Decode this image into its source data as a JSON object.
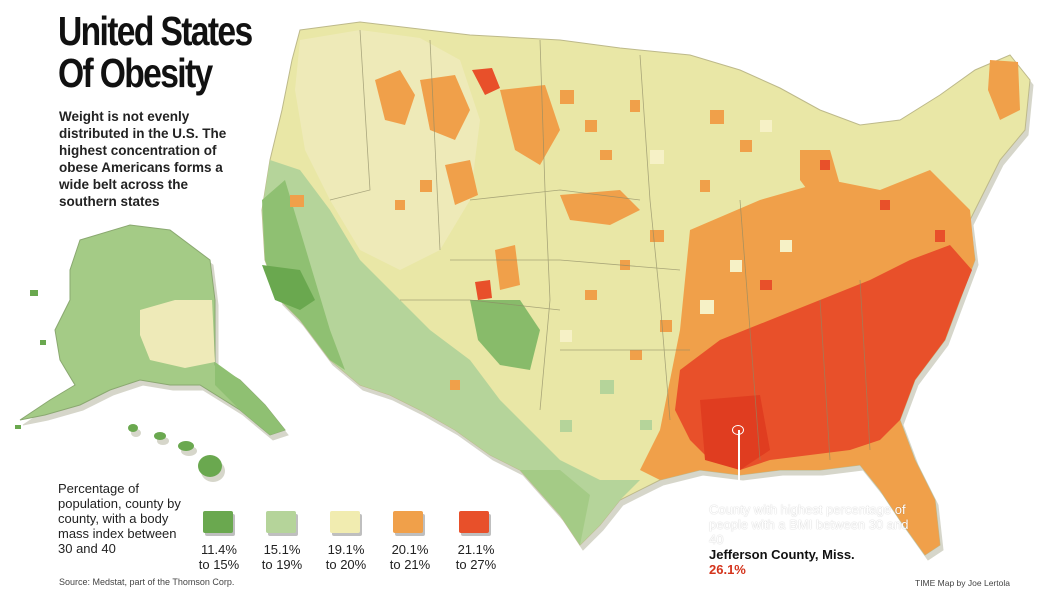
{
  "title": {
    "line1": "United States",
    "line2": "Of Obesity"
  },
  "subtitle": "Weight is not evenly distributed in the U.S. The highest concentration of obese Americans forms a wide belt across the southern states",
  "legend": {
    "title": "Percentage of population, county by county, with a body mass index between 30 and 40",
    "items": [
      {
        "range": "11.4% to 15%",
        "l1": "11.4%",
        "l2": "to 15%",
        "color": "#6aa84f"
      },
      {
        "range": "15.1% to 19%",
        "l1": "15.1%",
        "l2": "to 19%",
        "color": "#b5d49a"
      },
      {
        "range": "19.1% to 20%",
        "l1": "19.1%",
        "l2": "to 20%",
        "color": "#f1ecb0"
      },
      {
        "range": "20.1% to 21%",
        "l1": "20.1%",
        "l2": "to 21%",
        "color": "#f0a04a"
      },
      {
        "range": "21.1% to 27%",
        "l1": "21.1%",
        "l2": "to 27%",
        "color": "#e8502a"
      }
    ]
  },
  "callout": {
    "text": "County with highest percentage of people with a BMI between 30 and 40",
    "county": "Jefferson County, Miss.",
    "value": "26.1%"
  },
  "source": "Source: Medstat, part of the Thomson Corp.",
  "credit": "TIME Map by Joe Lertola"
}
